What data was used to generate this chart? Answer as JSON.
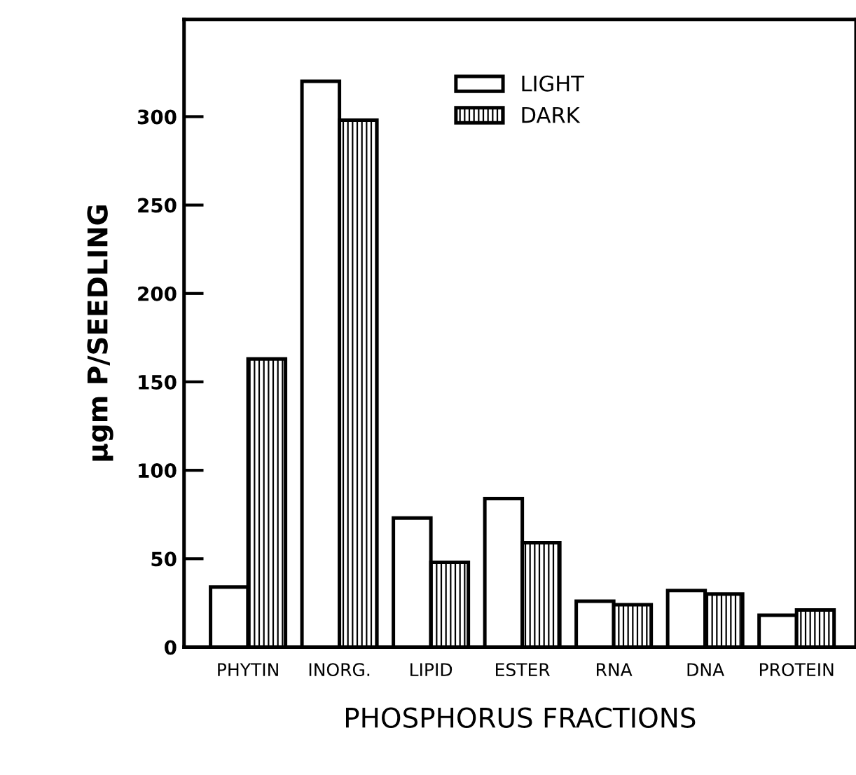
{
  "chart_data": {
    "type": "bar",
    "xlabel": "PHOSPHORUS FRACTIONS",
    "ylabel": "µgm P/SEEDLING",
    "categories": [
      "PHYTIN",
      "INORG.",
      "LIPID",
      "ESTER",
      "RNA",
      "DNA",
      "PROTEIN"
    ],
    "series": [
      {
        "name": "LIGHT",
        "color": "#ffffff",
        "values": [
          34,
          320,
          73,
          84,
          26,
          32,
          18
        ]
      },
      {
        "name": "DARK",
        "color": "#000000",
        "values": [
          163,
          298,
          48,
          59,
          24,
          30,
          21
        ]
      }
    ],
    "ylim": [
      0,
      355
    ],
    "yticks": [
      0,
      50,
      100,
      150,
      200,
      250,
      300
    ],
    "grid": false,
    "legend": "top"
  }
}
